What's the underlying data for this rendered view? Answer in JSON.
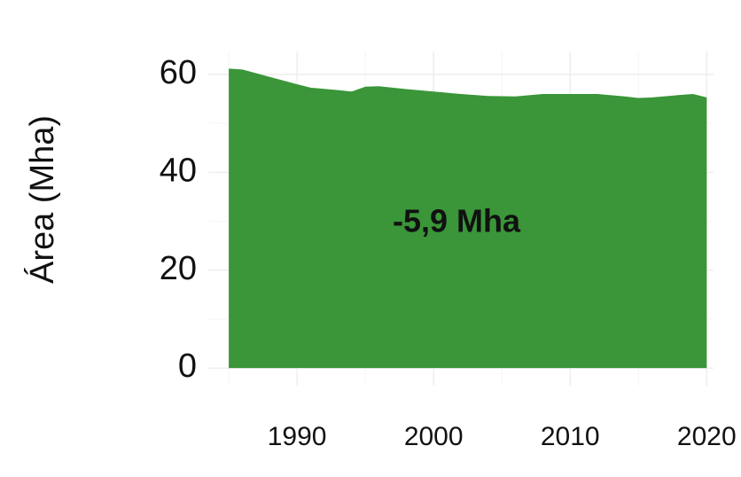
{
  "chart_data": {
    "type": "area",
    "y_label": "Área (Mha)",
    "annotation": "-5,9 Mha",
    "x": [
      1985,
      1986,
      1988,
      1990,
      1991,
      1993,
      1994,
      1995,
      1996,
      1998,
      2000,
      2002,
      2004,
      2006,
      2008,
      2010,
      2012,
      2014,
      2015,
      2016,
      2018,
      2019,
      2020
    ],
    "values": [
      61.2,
      61,
      59.5,
      58,
      57.3,
      56.8,
      56.5,
      57.5,
      57.6,
      57,
      56.5,
      56,
      55.6,
      55.5,
      56,
      56,
      56,
      55.5,
      55.2,
      55.3,
      55.8,
      56,
      55.3
    ],
    "color": "#3a9639",
    "xlim": [
      1983.5,
      2020.5
    ],
    "xticks": [
      1990,
      2000,
      2010,
      2020
    ],
    "ylim": [
      -3.6,
      64.7
    ],
    "yticks": [
      0,
      20,
      40,
      60
    ],
    "grid": true
  }
}
